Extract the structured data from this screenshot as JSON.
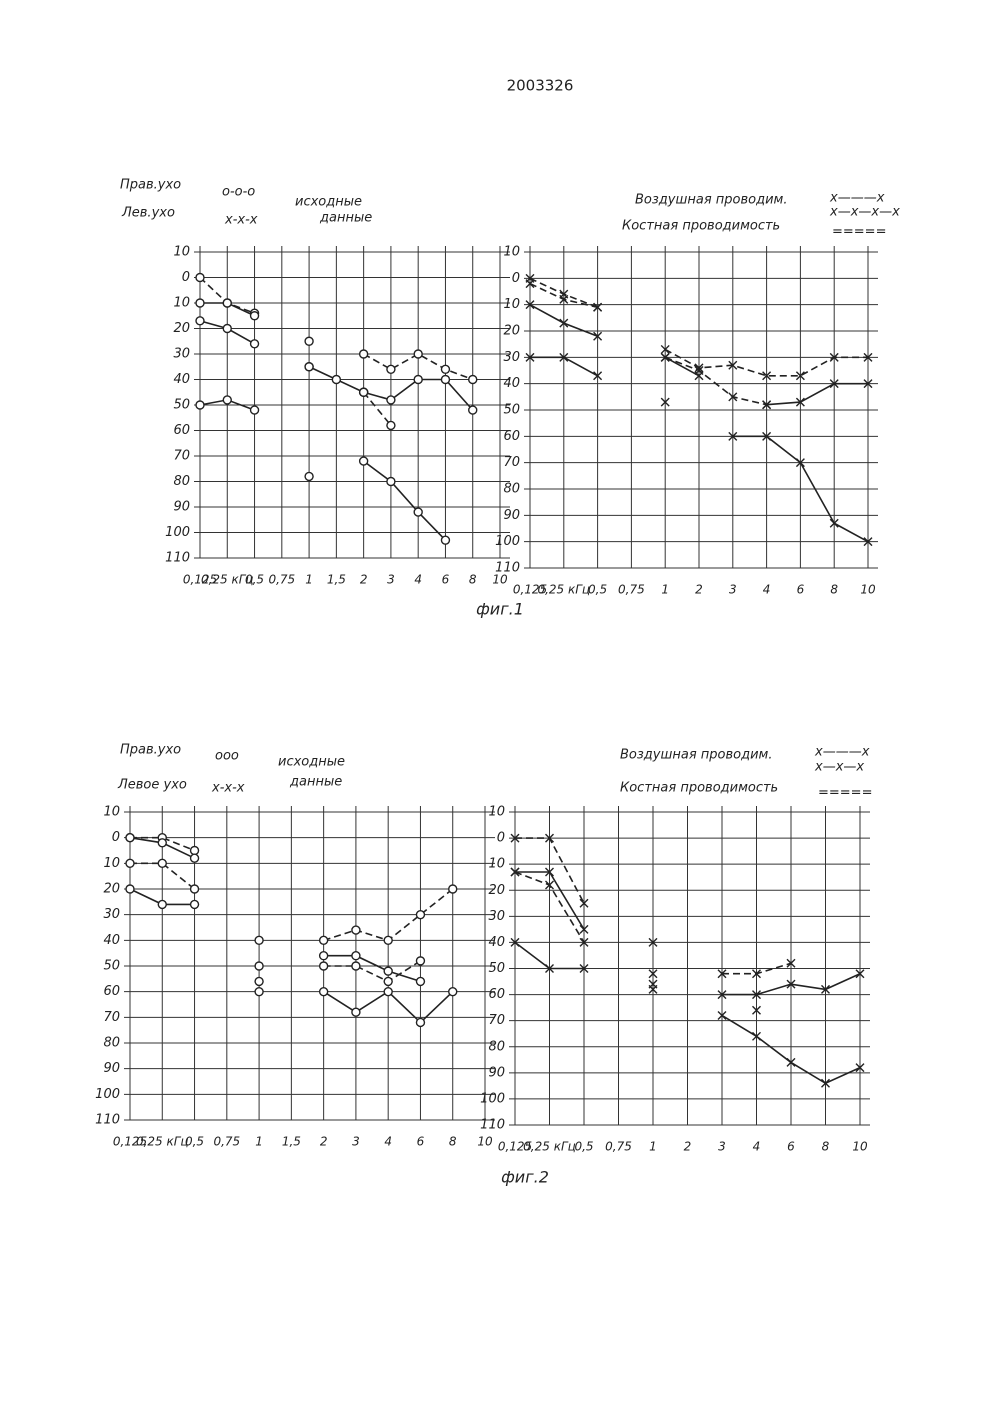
{
  "page_number": "2003326",
  "captions": [
    "фиг.1",
    "фиг.2"
  ],
  "chart_data": [
    {
      "type": "line",
      "annotations": [
        "Прав.ухо",
        "о-о-о",
        "Лев.ухо",
        "x-x-x",
        "исходные",
        "данные"
      ],
      "categories": [
        "0,125",
        "0,25 кГц",
        "0,5",
        "0,75",
        "1",
        "1,5",
        "2",
        "3",
        "4",
        "6",
        "8",
        "10"
      ],
      "ylim": [
        110,
        -10
      ],
      "yticks": [
        {
          "value": -10,
          "label": "10"
        },
        0,
        10,
        20,
        30,
        40,
        50,
        60,
        70,
        80,
        90,
        100,
        110
      ],
      "grid": true,
      "marker": "o",
      "series": [
        {
          "color": "#222",
          "dash": true,
          "values": [
            0,
            10,
            14,
            null,
            25,
            null,
            30,
            36,
            30,
            36,
            40,
            null
          ]
        },
        {
          "color": "#222",
          "dash": false,
          "values": [
            10,
            10,
            15,
            null,
            35,
            null,
            45,
            48,
            40,
            40,
            52,
            null
          ]
        },
        {
          "color": "#222",
          "dash": false,
          "values": [
            17,
            20,
            26,
            null,
            35,
            40,
            45,
            null,
            null,
            null,
            null,
            null
          ]
        },
        {
          "color": "#222",
          "dash": false,
          "values": [
            50,
            48,
            52,
            null,
            78,
            null,
            72,
            80,
            92,
            103,
            null,
            null
          ]
        },
        {
          "color": "#222",
          "dash": true,
          "values": [
            null,
            null,
            null,
            null,
            null,
            null,
            45,
            58,
            null,
            null,
            null,
            null
          ]
        }
      ]
    },
    {
      "type": "line",
      "annotations": [
        "Воздушная проводим.",
        "x———x",
        "x—x—x—x",
        "Костная проводимость",
        "====="
      ],
      "categories": [
        "0,125",
        "0,25 кГц",
        "0,5",
        "0,75",
        "1",
        "2",
        "3",
        "4",
        "6",
        "8",
        "10"
      ],
      "ylim": [
        110,
        -10
      ],
      "yticks": [
        {
          "value": -10,
          "label": "10"
        },
        0,
        10,
        20,
        30,
        40,
        50,
        60,
        70,
        80,
        90,
        100,
        110
      ],
      "grid": true,
      "marker": "x",
      "series": [
        {
          "color": "#222",
          "dash": true,
          "values": [
            0,
            6,
            11,
            null,
            27,
            34,
            33,
            37,
            37,
            30,
            30
          ]
        },
        {
          "color": "#222",
          "dash": true,
          "values": [
            2,
            8,
            11,
            null,
            30,
            35,
            45,
            48,
            null,
            null,
            null
          ]
        },
        {
          "color": "#222",
          "dash": false,
          "values": [
            10,
            17,
            22,
            null,
            30,
            37,
            null,
            48,
            47,
            40,
            40
          ]
        },
        {
          "color": "#222",
          "dash": false,
          "values": [
            30,
            30,
            37,
            null,
            47,
            null,
            60,
            60,
            70,
            93,
            100
          ]
        }
      ]
    },
    {
      "type": "line",
      "annotations": [
        "Прав.ухо",
        "ооо",
        "Левое ухо",
        "x-x-x",
        "исходные",
        "данные"
      ],
      "categories": [
        "0,125",
        "0,25 кГц",
        "0,5",
        "0,75",
        "1",
        "1,5",
        "2",
        "3",
        "4",
        "6",
        "8",
        "10"
      ],
      "ylim": [
        110,
        -10
      ],
      "yticks": [
        {
          "value": -10,
          "label": "10"
        },
        0,
        10,
        20,
        30,
        40,
        50,
        60,
        70,
        80,
        90,
        100,
        110
      ],
      "grid": true,
      "marker": "o",
      "series": [
        {
          "color": "#222",
          "dash": true,
          "values": [
            0,
            0,
            5,
            null,
            40,
            null,
            40,
            36,
            40,
            30,
            20,
            null
          ]
        },
        {
          "color": "#222",
          "dash": false,
          "values": [
            0,
            2,
            8,
            null,
            50,
            null,
            46,
            46,
            52,
            56,
            null,
            null
          ]
        },
        {
          "color": "#222",
          "dash": true,
          "values": [
            10,
            10,
            20,
            null,
            56,
            null,
            50,
            50,
            56,
            48,
            null,
            null
          ]
        },
        {
          "color": "#222",
          "dash": false,
          "values": [
            20,
            26,
            26,
            null,
            60,
            null,
            60,
            68,
            60,
            72,
            60,
            null
          ]
        }
      ]
    },
    {
      "type": "line",
      "annotations": [
        "Воздушная проводим.",
        "x———x",
        "x—x—x",
        "Костная проводимость",
        "====="
      ],
      "categories": [
        "0,125",
        "0,25 кГц",
        "0,5",
        "0,75",
        "1",
        "2",
        "3",
        "4",
        "6",
        "8",
        "10"
      ],
      "ylim": [
        110,
        -10
      ],
      "yticks": [
        {
          "value": -10,
          "label": "10"
        },
        0,
        10,
        20,
        30,
        40,
        50,
        60,
        70,
        80,
        90,
        100,
        110
      ],
      "grid": true,
      "marker": "x",
      "series": [
        {
          "color": "#222",
          "dash": true,
          "values": [
            0,
            0,
            25,
            null,
            40,
            null,
            52,
            52,
            48,
            null,
            null
          ]
        },
        {
          "color": "#222",
          "dash": false,
          "values": [
            13,
            13,
            35,
            null,
            52,
            null,
            60,
            60,
            56,
            58,
            52
          ]
        },
        {
          "color": "#222",
          "dash": true,
          "values": [
            13,
            18,
            40,
            null,
            58,
            null,
            null,
            66,
            null,
            null,
            null
          ]
        },
        {
          "color": "#222",
          "dash": false,
          "values": [
            40,
            50,
            50,
            null,
            56,
            null,
            68,
            76,
            86,
            94,
            88
          ]
        }
      ]
    }
  ]
}
